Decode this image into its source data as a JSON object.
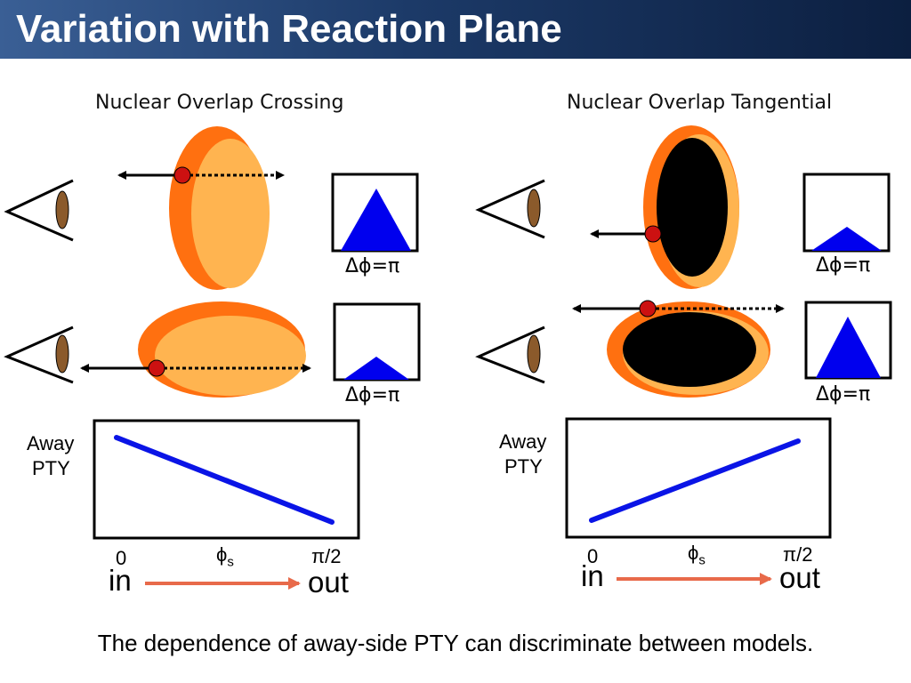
{
  "slide": {
    "title": "Variation with Reaction Plane",
    "footer": "The dependence of away-side PTY can discriminate between models."
  },
  "left_panel": {
    "heading": "Nuclear Overlap Crossing",
    "histogram_labels": [
      "Δϕ=π",
      "Δϕ=π"
    ],
    "plot": {
      "y_label_line1": "Away",
      "y_label_line2": "PTY",
      "x_min_label": "0",
      "x_mid_label": "ϕ",
      "x_mid_subscript": "s",
      "x_max_label": "π/2",
      "in_label": "in",
      "out_label": "out",
      "trend": "decreasing"
    }
  },
  "right_panel": {
    "heading": "Nuclear Overlap Tangential",
    "histogram_labels": [
      "Δϕ=π",
      "Δϕ=π"
    ],
    "plot": {
      "y_label_line1": "Away",
      "y_label_line2": "PTY",
      "x_min_label": "0",
      "x_mid_label": "ϕ",
      "x_mid_subscript": "s",
      "x_max_label": "π/2",
      "in_label": "in",
      "out_label": "out",
      "trend": "increasing"
    }
  },
  "colors": {
    "title_bar": "#1c3a68",
    "nucleus_outer": "#ff7010",
    "nucleus_inner": "#ffb450",
    "overlap_core": "#000000",
    "histogram_peak": "#0000ee",
    "trend_line": "#0a14e6",
    "particle": "#cc1111",
    "in_out_arrow": "#e86a4a",
    "eye": "#8b5a2b"
  }
}
